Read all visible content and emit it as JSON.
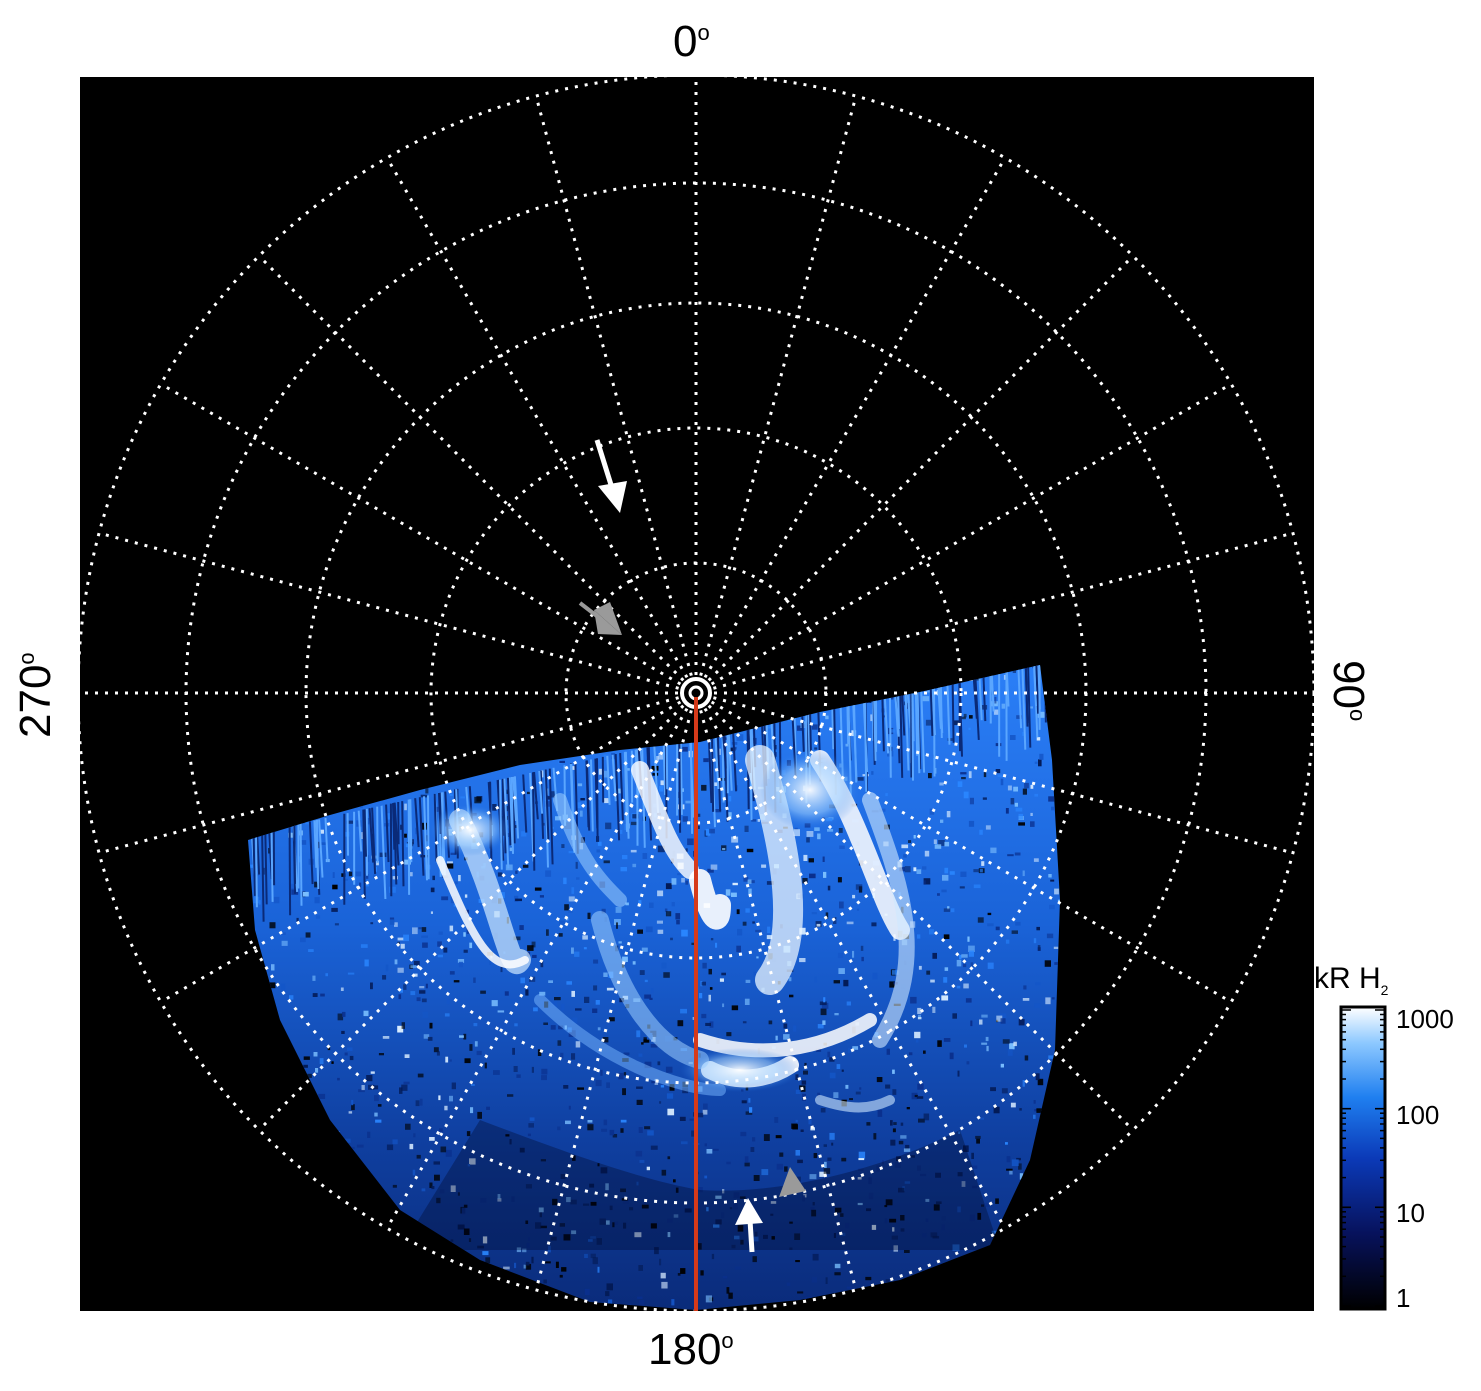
{
  "labels": {
    "top": "0",
    "bottom": "180",
    "left": "270",
    "right": "90",
    "degree": "o"
  },
  "colorbar": {
    "title": "kR H",
    "title_sub": "2",
    "ticks": [
      "1000",
      "100",
      "10",
      "1"
    ]
  },
  "colors": {
    "background": "#000000",
    "grid": "#ffffff",
    "meridian": "#d63a1a",
    "arrow_white": "#ffffff",
    "arrow_gray": "#9a9a9a",
    "emission_dark": "#0b2a7a",
    "emission_mid": "#1e6fe0",
    "emission_bright": "#e8f4ff"
  }
}
